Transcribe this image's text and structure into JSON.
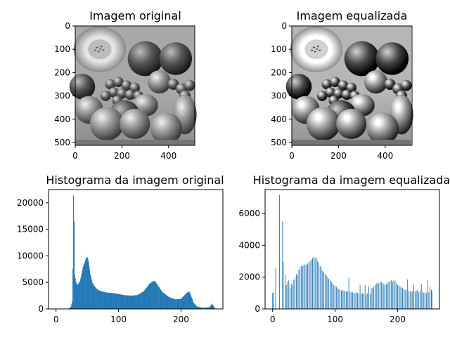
{
  "panels": {
    "original_image": {
      "title": "Imagem original",
      "image": "grayscale-fruit-photo",
      "x_ticks": [
        "0",
        "200",
        "400"
      ],
      "y_ticks": [
        "0",
        "100",
        "200",
        "300",
        "400",
        "500"
      ],
      "x_range": [
        0,
        512
      ],
      "y_range": [
        0,
        512
      ]
    },
    "equalized_image": {
      "title": "Imagem equalizada",
      "image": "grayscale-fruit-photo-equalized",
      "x_ticks": [
        "0",
        "200",
        "400"
      ],
      "y_ticks": [
        "0",
        "100",
        "200",
        "300",
        "400",
        "500"
      ],
      "x_range": [
        0,
        512
      ],
      "y_range": [
        0,
        512
      ]
    }
  },
  "chart_data": [
    {
      "type": "bar",
      "title": "Histograma da imagem original",
      "color": "#1f77b4",
      "xlim": [
        -12,
        267
      ],
      "ylim": [
        0,
        22500
      ],
      "x_ticks": [
        0,
        100,
        200
      ],
      "y_ticks": [
        0,
        5000,
        10000,
        15000,
        20000
      ],
      "grid": false,
      "profile": [
        [
          0,
          0
        ],
        [
          20,
          0
        ],
        [
          24,
          400
        ],
        [
          26,
          1500
        ],
        [
          27,
          7600
        ],
        [
          28,
          21400
        ],
        [
          29,
          16500
        ],
        [
          30,
          6500
        ],
        [
          32,
          5000
        ],
        [
          35,
          4500
        ],
        [
          38,
          5200
        ],
        [
          40,
          6000
        ],
        [
          43,
          7800
        ],
        [
          46,
          8800
        ],
        [
          48,
          9600
        ],
        [
          50,
          9800
        ],
        [
          52,
          9000
        ],
        [
          55,
          6500
        ],
        [
          58,
          5000
        ],
        [
          62,
          4200
        ],
        [
          66,
          3700
        ],
        [
          70,
          3400
        ],
        [
          80,
          3100
        ],
        [
          90,
          3000
        ],
        [
          100,
          2800
        ],
        [
          110,
          2600
        ],
        [
          120,
          2500
        ],
        [
          130,
          2600
        ],
        [
          140,
          3300
        ],
        [
          145,
          4000
        ],
        [
          150,
          4800
        ],
        [
          155,
          5200
        ],
        [
          158,
          5300
        ],
        [
          162,
          4600
        ],
        [
          170,
          3200
        ],
        [
          180,
          2300
        ],
        [
          190,
          1800
        ],
        [
          200,
          1900
        ],
        [
          205,
          2500
        ],
        [
          210,
          3100
        ],
        [
          213,
          3300
        ],
        [
          216,
          2500
        ],
        [
          220,
          1200
        ],
        [
          225,
          500
        ],
        [
          235,
          200
        ],
        [
          245,
          300
        ],
        [
          248,
          700
        ],
        [
          250,
          1000
        ],
        [
          253,
          400
        ],
        [
          255,
          50
        ]
      ]
    },
    {
      "type": "bar",
      "title": "Histograma da imagem equalizada",
      "color": "#1f77b4",
      "xlim": [
        -12,
        267
      ],
      "ylim": [
        0,
        7500
      ],
      "x_ticks": [
        0,
        100,
        200
      ],
      "y_ticks": [
        0,
        2000,
        4000,
        6000
      ],
      "grid": false,
      "spikes": [
        [
          0,
          1000
        ],
        [
          2,
          1050
        ],
        [
          5,
          2550
        ],
        [
          11,
          7150
        ],
        [
          16,
          5500
        ],
        [
          17,
          2950
        ],
        [
          20,
          2150
        ],
        [
          22,
          1500
        ],
        [
          24,
          1700
        ],
        [
          26,
          1800
        ],
        [
          28,
          1300
        ],
        [
          30,
          1600
        ],
        [
          32,
          1500
        ],
        [
          34,
          1800
        ],
        [
          36,
          2000
        ],
        [
          38,
          2200
        ],
        [
          40,
          2100
        ],
        [
          42,
          2450
        ],
        [
          44,
          2600
        ],
        [
          46,
          2700
        ],
        [
          48,
          2700
        ],
        [
          50,
          2750
        ],
        [
          52,
          2800
        ],
        [
          54,
          2750
        ],
        [
          56,
          2850
        ],
        [
          58,
          2900
        ],
        [
          60,
          3000
        ],
        [
          62,
          3100
        ],
        [
          64,
          3200
        ],
        [
          66,
          3250
        ],
        [
          68,
          3200
        ],
        [
          70,
          3200
        ],
        [
          72,
          3000
        ],
        [
          74,
          2900
        ],
        [
          76,
          2700
        ],
        [
          78,
          2600
        ],
        [
          80,
          2400
        ],
        [
          82,
          2300
        ],
        [
          84,
          2200
        ],
        [
          86,
          2100
        ],
        [
          88,
          2000
        ],
        [
          90,
          1900
        ],
        [
          92,
          1800
        ],
        [
          94,
          1700
        ],
        [
          96,
          1600
        ],
        [
          98,
          1500
        ],
        [
          100,
          1450
        ],
        [
          102,
          1400
        ],
        [
          104,
          1300
        ],
        [
          106,
          1250
        ],
        [
          108,
          1200
        ],
        [
          110,
          1150
        ],
        [
          112,
          1200
        ],
        [
          114,
          1150
        ],
        [
          116,
          1100
        ],
        [
          118,
          1100
        ],
        [
          120,
          1100
        ],
        [
          122,
          1950
        ],
        [
          124,
          1100
        ],
        [
          126,
          1050
        ],
        [
          128,
          1050
        ],
        [
          130,
          1000
        ],
        [
          132,
          1000
        ],
        [
          134,
          1050
        ],
        [
          136,
          1000
        ],
        [
          138,
          1000
        ],
        [
          140,
          1500
        ],
        [
          142,
          950
        ],
        [
          144,
          1000
        ],
        [
          146,
          950
        ],
        [
          148,
          1500
        ],
        [
          150,
          900
        ],
        [
          152,
          1000
        ],
        [
          154,
          1400
        ],
        [
          156,
          950
        ],
        [
          158,
          1300
        ],
        [
          160,
          1300
        ],
        [
          162,
          1400
        ],
        [
          164,
          1500
        ],
        [
          166,
          1600
        ],
        [
          168,
          1650
        ],
        [
          170,
          1600
        ],
        [
          172,
          1700
        ],
        [
          174,
          1700
        ],
        [
          176,
          1600
        ],
        [
          178,
          1600
        ],
        [
          180,
          1500
        ],
        [
          182,
          1550
        ],
        [
          184,
          1650
        ],
        [
          186,
          1700
        ],
        [
          188,
          1750
        ],
        [
          190,
          1800
        ],
        [
          192,
          1700
        ],
        [
          194,
          1800
        ],
        [
          196,
          1750
        ],
        [
          198,
          1600
        ],
        [
          200,
          1500
        ],
        [
          202,
          1500
        ],
        [
          204,
          1400
        ],
        [
          206,
          1350
        ],
        [
          208,
          1300
        ],
        [
          210,
          1250
        ],
        [
          212,
          1200
        ],
        [
          214,
          1200
        ],
        [
          216,
          1850
        ],
        [
          218,
          1150
        ],
        [
          220,
          1100
        ],
        [
          222,
          1100
        ],
        [
          224,
          1100
        ],
        [
          226,
          1550
        ],
        [
          228,
          1100
        ],
        [
          230,
          1150
        ],
        [
          232,
          1200
        ],
        [
          234,
          1050
        ],
        [
          236,
          1100
        ],
        [
          238,
          1550
        ],
        [
          240,
          1100
        ],
        [
          242,
          1000
        ],
        [
          244,
          1050
        ],
        [
          246,
          1000
        ],
        [
          248,
          1800
        ],
        [
          250,
          1050
        ],
        [
          252,
          1400
        ],
        [
          254,
          1200
        ],
        [
          255,
          1100
        ]
      ]
    }
  ]
}
